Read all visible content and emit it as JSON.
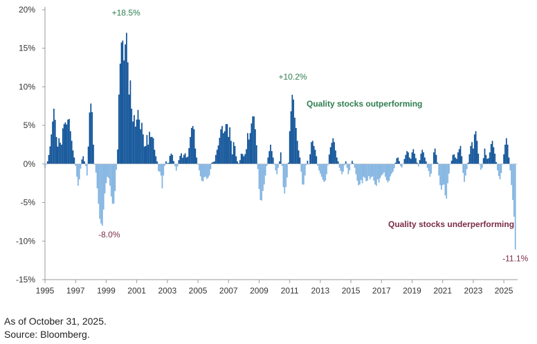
{
  "colors": {
    "positive": "#0a4f96",
    "negative": "#7fb2e0",
    "outperform_text": "#2e7d4f",
    "underperform_text": "#7a2b48",
    "axis": "#999999"
  },
  "footnotes": {
    "as_of": "As of October 31, 2025.",
    "source": "Source: Bloomberg."
  },
  "chart_data": {
    "type": "bar",
    "title": "",
    "xlabel": "",
    "ylabel": "",
    "ylim": [
      -15,
      20
    ],
    "xlim": [
      1995.0,
      2025.9
    ],
    "y_ticks": [
      20,
      15,
      10,
      5,
      0,
      -5,
      -10,
      -15
    ],
    "y_tick_labels": [
      "20%",
      "15%",
      "10%",
      "5%",
      "0%",
      "-5%",
      "-10%",
      "-15%"
    ],
    "x_ticks": [
      1995,
      1997,
      1999,
      2001,
      2003,
      2005,
      2007,
      2009,
      2011,
      2013,
      2015,
      2017,
      2019,
      2021,
      2023,
      2025
    ],
    "x_tick_labels": [
      "1995",
      "1997",
      "1999",
      "2001",
      "2003",
      "2005",
      "2007",
      "2009",
      "2011",
      "2013",
      "2015",
      "2017",
      "2019",
      "2021",
      "2023",
      "2025"
    ],
    "annotations": [
      {
        "text": "+18.5%",
        "x": 2000.3,
        "y": 18.5,
        "kind": "peak"
      },
      {
        "text": "-8.0%",
        "x": 1999.2,
        "y": -8.0,
        "kind": "trough"
      },
      {
        "text": "+10.2%",
        "x": 2011.2,
        "y": 10.2,
        "kind": "peak"
      },
      {
        "text": "-11.1%",
        "x": 2025.75,
        "y": -11.1,
        "kind": "trough"
      }
    ],
    "labels": {
      "outperform": "Quality stocks outperforming",
      "underperform": "Quality stocks underperforming"
    },
    "keypoints": [
      [
        1995.0,
        -0.5
      ],
      [
        1995.2,
        0.5
      ],
      [
        1995.35,
        2.5
      ],
      [
        1995.5,
        5.5
      ],
      [
        1995.6,
        7.5
      ],
      [
        1995.75,
        3.5
      ],
      [
        1995.85,
        2.0
      ],
      [
        1995.95,
        4.0
      ],
      [
        1996.05,
        1.5
      ],
      [
        1996.15,
        4.5
      ],
      [
        1996.3,
        5.5
      ],
      [
        1996.45,
        5.0
      ],
      [
        1996.55,
        6.5
      ],
      [
        1996.65,
        4.5
      ],
      [
        1996.75,
        3.0
      ],
      [
        1996.85,
        1.5
      ],
      [
        1996.95,
        0.5
      ],
      [
        1997.05,
        -1.0
      ],
      [
        1997.15,
        -3.0
      ],
      [
        1997.25,
        -2.0
      ],
      [
        1997.4,
        0.5
      ],
      [
        1997.5,
        1.0
      ],
      [
        1997.6,
        0.2
      ],
      [
        1997.7,
        -0.5
      ],
      [
        1997.75,
        -1.5
      ],
      [
        1997.85,
        3.0
      ],
      [
        1997.95,
        8.5
      ],
      [
        1998.1,
        6.5
      ],
      [
        1998.15,
        3.0
      ],
      [
        1998.25,
        0.0
      ],
      [
        1998.3,
        -0.3
      ],
      [
        1998.45,
        -4.0
      ],
      [
        1998.6,
        -7.5
      ],
      [
        1998.75,
        -8.0
      ],
      [
        1998.85,
        -5.5
      ],
      [
        1998.95,
        -3.0
      ],
      [
        1999.1,
        -1.5
      ],
      [
        1999.2,
        -2.0
      ],
      [
        1999.35,
        -4.5
      ],
      [
        1999.45,
        -5.5
      ],
      [
        1999.55,
        -4.8
      ],
      [
        1999.65,
        -1.0
      ],
      [
        1999.72,
        0.0
      ],
      [
        1999.8,
        5.0
      ],
      [
        1999.85,
        11.0
      ],
      [
        1999.95,
        14.0
      ],
      [
        2000.05,
        17.5
      ],
      [
        2000.15,
        13.0
      ],
      [
        2000.25,
        15.5
      ],
      [
        2000.3,
        18.5
      ],
      [
        2000.4,
        14.0
      ],
      [
        2000.5,
        9.0
      ],
      [
        2000.55,
        12.5
      ],
      [
        2000.65,
        7.5
      ],
      [
        2000.75,
        5.5
      ],
      [
        2000.85,
        6.5
      ],
      [
        2000.95,
        4.0
      ],
      [
        2001.05,
        7.5
      ],
      [
        2001.15,
        6.0
      ],
      [
        2001.25,
        4.5
      ],
      [
        2001.35,
        5.5
      ],
      [
        2001.45,
        3.0
      ],
      [
        2001.55,
        1.5
      ],
      [
        2001.65,
        4.0
      ],
      [
        2001.75,
        2.5
      ],
      [
        2001.85,
        4.5
      ],
      [
        2001.95,
        3.0
      ],
      [
        2002.05,
        4.0
      ],
      [
        2002.15,
        2.0
      ],
      [
        2002.25,
        1.0
      ],
      [
        2002.35,
        0.2
      ],
      [
        2002.45,
        -1.5
      ],
      [
        2002.55,
        -0.5
      ],
      [
        2002.65,
        -3.5
      ],
      [
        2002.75,
        -1.5
      ],
      [
        2002.85,
        0.0
      ],
      [
        2002.95,
        0.5
      ],
      [
        2003.05,
        -0.3
      ],
      [
        2003.15,
        1.0
      ],
      [
        2003.3,
        1.5
      ],
      [
        2003.4,
        0.5
      ],
      [
        2003.5,
        -0.3
      ],
      [
        2003.6,
        -1.0
      ],
      [
        2003.75,
        0.5
      ],
      [
        2003.9,
        1.5
      ],
      [
        2004.0,
        0.8
      ],
      [
        2004.15,
        1.5
      ],
      [
        2004.3,
        0.5
      ],
      [
        2004.45,
        2.5
      ],
      [
        2004.55,
        4.5
      ],
      [
        2004.65,
        5.0
      ],
      [
        2004.75,
        4.5
      ],
      [
        2004.85,
        1.5
      ],
      [
        2004.95,
        0.5
      ],
      [
        2005.05,
        -0.5
      ],
      [
        2005.15,
        -1.5
      ],
      [
        2005.3,
        -2.5
      ],
      [
        2005.45,
        -1.5
      ],
      [
        2005.6,
        -2.0
      ],
      [
        2005.75,
        -1.5
      ],
      [
        2005.85,
        -0.5
      ],
      [
        2005.95,
        0.5
      ],
      [
        2006.05,
        0.0
      ],
      [
        2006.2,
        1.5
      ],
      [
        2006.35,
        2.5
      ],
      [
        2006.5,
        4.5
      ],
      [
        2006.6,
        5.0
      ],
      [
        2006.7,
        3.5
      ],
      [
        2006.8,
        5.0
      ],
      [
        2006.9,
        5.5
      ],
      [
        2007.0,
        3.5
      ],
      [
        2007.1,
        5.0
      ],
      [
        2007.2,
        2.0
      ],
      [
        2007.3,
        0.5
      ],
      [
        2007.35,
        4.0
      ],
      [
        2007.45,
        1.5
      ],
      [
        2007.55,
        0.5
      ],
      [
        2007.65,
        0.0
      ],
      [
        2007.75,
        0.5
      ],
      [
        2007.85,
        1.5
      ],
      [
        2008.0,
        1.0
      ],
      [
        2008.15,
        1.5
      ],
      [
        2008.25,
        4.0
      ],
      [
        2008.35,
        3.0
      ],
      [
        2008.45,
        4.5
      ],
      [
        2008.55,
        6.0
      ],
      [
        2008.65,
        6.5
      ],
      [
        2008.75,
        4.5
      ],
      [
        2008.85,
        2.0
      ],
      [
        2008.95,
        -2.0
      ],
      [
        2009.05,
        -4.5
      ],
      [
        2009.15,
        -5.0
      ],
      [
        2009.25,
        -3.5
      ],
      [
        2009.35,
        -2.5
      ],
      [
        2009.45,
        -1.0
      ],
      [
        2009.55,
        0.5
      ],
      [
        2009.65,
        1.5
      ],
      [
        2009.75,
        2.5
      ],
      [
        2009.85,
        1.5
      ],
      [
        2009.95,
        0.5
      ],
      [
        2010.05,
        -0.5
      ],
      [
        2010.15,
        -1.5
      ],
      [
        2010.25,
        -0.5
      ],
      [
        2010.35,
        0.5
      ],
      [
        2010.45,
        2.0
      ],
      [
        2010.55,
        -2.5
      ],
      [
        2010.65,
        -4.0
      ],
      [
        2010.75,
        -3.0
      ],
      [
        2010.85,
        -1.5
      ],
      [
        2010.95,
        1.0
      ],
      [
        2011.05,
        7.5
      ],
      [
        2011.1,
        6.5
      ],
      [
        2011.2,
        10.2
      ],
      [
        2011.3,
        6.5
      ],
      [
        2011.4,
        5.0
      ],
      [
        2011.5,
        3.0
      ],
      [
        2011.6,
        1.5
      ],
      [
        2011.7,
        0.5
      ],
      [
        2011.75,
        -1.0
      ],
      [
        2011.85,
        -3.0
      ],
      [
        2011.95,
        -2.5
      ],
      [
        2012.05,
        -0.5
      ],
      [
        2012.15,
        0.5
      ],
      [
        2012.25,
        0.0
      ],
      [
        2012.35,
        1.5
      ],
      [
        2012.45,
        3.5
      ],
      [
        2012.55,
        2.5
      ],
      [
        2012.65,
        2.0
      ],
      [
        2012.75,
        1.0
      ],
      [
        2012.85,
        -0.5
      ],
      [
        2012.95,
        -1.0
      ],
      [
        2013.05,
        -1.5
      ],
      [
        2013.15,
        -2.0
      ],
      [
        2013.3,
        -2.5
      ],
      [
        2013.45,
        -1.0
      ],
      [
        2013.6,
        1.5
      ],
      [
        2013.7,
        2.5
      ],
      [
        2013.8,
        3.0
      ],
      [
        2013.85,
        3.5
      ],
      [
        2013.95,
        2.5
      ],
      [
        2014.05,
        1.0
      ],
      [
        2014.15,
        0.5
      ],
      [
        2014.25,
        -0.5
      ],
      [
        2014.35,
        -1.0
      ],
      [
        2014.45,
        -1.5
      ],
      [
        2014.55,
        -0.5
      ],
      [
        2014.65,
        0.5
      ],
      [
        2014.75,
        -0.5
      ],
      [
        2014.85,
        -1.5
      ],
      [
        2014.95,
        -0.5
      ],
      [
        2015.05,
        0.5
      ],
      [
        2015.15,
        0.2
      ],
      [
        2015.25,
        -0.5
      ],
      [
        2015.35,
        -1.5
      ],
      [
        2015.45,
        -2.5
      ],
      [
        2015.55,
        -3.0
      ],
      [
        2015.65,
        -2.0
      ],
      [
        2015.75,
        -2.5
      ],
      [
        2015.85,
        -1.5
      ],
      [
        2015.95,
        -2.0
      ],
      [
        2016.05,
        -2.5
      ],
      [
        2016.15,
        -1.5
      ],
      [
        2016.25,
        -2.0
      ],
      [
        2016.4,
        -1.5
      ],
      [
        2016.55,
        -2.5
      ],
      [
        2016.65,
        -3.0
      ],
      [
        2016.75,
        -2.0
      ],
      [
        2016.85,
        -2.5
      ],
      [
        2016.95,
        -1.5
      ],
      [
        2017.05,
        -1.5
      ],
      [
        2017.15,
        -1.0
      ],
      [
        2017.3,
        -2.0
      ],
      [
        2017.45,
        -2.5
      ],
      [
        2017.6,
        -1.5
      ],
      [
        2017.75,
        -1.0
      ],
      [
        2017.85,
        -0.5
      ],
      [
        2017.95,
        0.5
      ],
      [
        2018.05,
        1.0
      ],
      [
        2018.15,
        0.5
      ],
      [
        2018.25,
        -0.3
      ],
      [
        2018.35,
        -0.5
      ],
      [
        2018.45,
        0.3
      ],
      [
        2018.55,
        1.0
      ],
      [
        2018.65,
        1.5
      ],
      [
        2018.7,
        2.0
      ],
      [
        2018.8,
        1.0
      ],
      [
        2018.9,
        0.5
      ],
      [
        2019.0,
        1.5
      ],
      [
        2019.1,
        2.0
      ],
      [
        2019.2,
        1.0
      ],
      [
        2019.3,
        0.5
      ],
      [
        2019.4,
        -0.5
      ],
      [
        2019.5,
        0.5
      ],
      [
        2019.6,
        1.5
      ],
      [
        2019.7,
        2.0
      ],
      [
        2019.8,
        1.0
      ],
      [
        2019.9,
        0.5
      ],
      [
        2020.0,
        -0.5
      ],
      [
        2020.1,
        -1.0
      ],
      [
        2020.2,
        -2.0
      ],
      [
        2020.3,
        -0.5
      ],
      [
        2020.4,
        1.0
      ],
      [
        2020.45,
        2.5
      ],
      [
        2020.55,
        1.5
      ],
      [
        2020.65,
        0.5
      ],
      [
        2020.75,
        -1.5
      ],
      [
        2020.85,
        -3.0
      ],
      [
        2020.95,
        -3.5
      ],
      [
        2021.05,
        -2.0
      ],
      [
        2021.15,
        -4.0
      ],
      [
        2021.25,
        -4.5
      ],
      [
        2021.3,
        -3.0
      ],
      [
        2021.4,
        -1.5
      ],
      [
        2021.5,
        0.0
      ],
      [
        2021.6,
        0.5
      ],
      [
        2021.7,
        1.5
      ],
      [
        2021.8,
        1.0
      ],
      [
        2021.9,
        0.5
      ],
      [
        2022.0,
        1.5
      ],
      [
        2022.1,
        2.0
      ],
      [
        2022.2,
        2.5
      ],
      [
        2022.3,
        -0.5
      ],
      [
        2022.4,
        -2.5
      ],
      [
        2022.5,
        -1.5
      ],
      [
        2022.6,
        -0.5
      ],
      [
        2022.7,
        0.5
      ],
      [
        2022.8,
        2.0
      ],
      [
        2022.9,
        3.0
      ],
      [
        2023.0,
        2.0
      ],
      [
        2023.05,
        3.5
      ],
      [
        2023.15,
        4.5
      ],
      [
        2023.25,
        3.0
      ],
      [
        2023.35,
        1.0
      ],
      [
        2023.45,
        -0.5
      ],
      [
        2023.55,
        -1.0
      ],
      [
        2023.65,
        0.5
      ],
      [
        2023.75,
        2.0
      ],
      [
        2023.85,
        1.0
      ],
      [
        2023.95,
        0.5
      ],
      [
        2024.05,
        1.0
      ],
      [
        2024.15,
        2.5
      ],
      [
        2024.25,
        3.0
      ],
      [
        2024.35,
        2.0
      ],
      [
        2024.45,
        1.0
      ],
      [
        2024.55,
        -0.5
      ],
      [
        2024.65,
        -1.5
      ],
      [
        2024.75,
        -2.0
      ],
      [
        2024.85,
        -1.0
      ],
      [
        2024.95,
        0.5
      ],
      [
        2025.05,
        2.0
      ],
      [
        2025.15,
        3.5
      ],
      [
        2025.25,
        2.5
      ],
      [
        2025.35,
        0.5
      ],
      [
        2025.45,
        -1.5
      ],
      [
        2025.55,
        -4.0
      ],
      [
        2025.65,
        -6.0
      ],
      [
        2025.75,
        -11.1
      ]
    ]
  }
}
